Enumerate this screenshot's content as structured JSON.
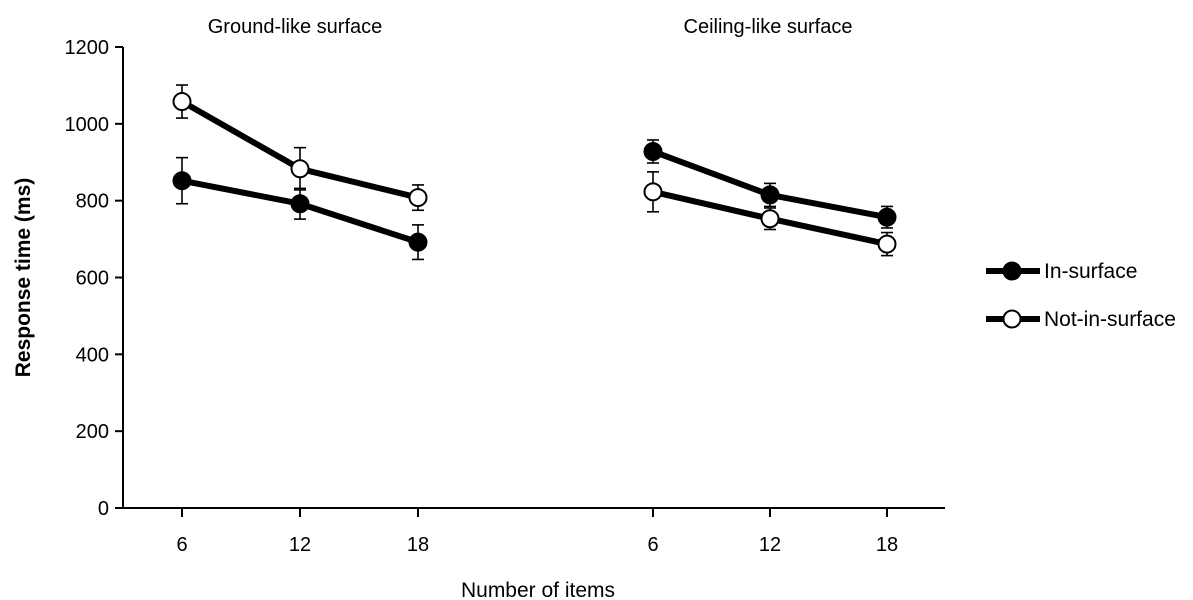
{
  "chart_data": {
    "type": "line",
    "xlabel": "Number of items",
    "ylabel": "Response time (ms)",
    "ylim": [
      0,
      1200
    ],
    "yticks": [
      0,
      200,
      400,
      600,
      800,
      1000,
      1200
    ],
    "panels": [
      {
        "title": "Ground-like surface",
        "categories": [
          "6",
          "12",
          "18"
        ],
        "series": [
          {
            "name": "In-surface",
            "values": [
              852,
              792,
              692
            ],
            "errors": [
              60,
              40,
              45
            ]
          },
          {
            "name": "Not-in-surface",
            "values": [
              1058,
              883,
              808
            ],
            "errors": [
              43,
              55,
              33
            ]
          }
        ]
      },
      {
        "title": "Ceiling-like surface",
        "categories": [
          "6",
          "12",
          "18"
        ],
        "series": [
          {
            "name": "In-surface",
            "values": [
              928,
              815,
              757
            ],
            "errors": [
              30,
              30,
              28
            ]
          },
          {
            "name": "Not-in-surface",
            "values": [
              823,
              753,
              687
            ],
            "errors": [
              52,
              28,
              30
            ]
          }
        ]
      }
    ],
    "legend": {
      "position": "right",
      "entries": [
        {
          "name": "In-surface",
          "marker": "filled-circle"
        },
        {
          "name": "Not-in-surface",
          "marker": "open-circle"
        }
      ]
    },
    "colors": {
      "line": "#000000",
      "filled_marker": "#000000",
      "open_marker_fill": "#ffffff"
    }
  }
}
